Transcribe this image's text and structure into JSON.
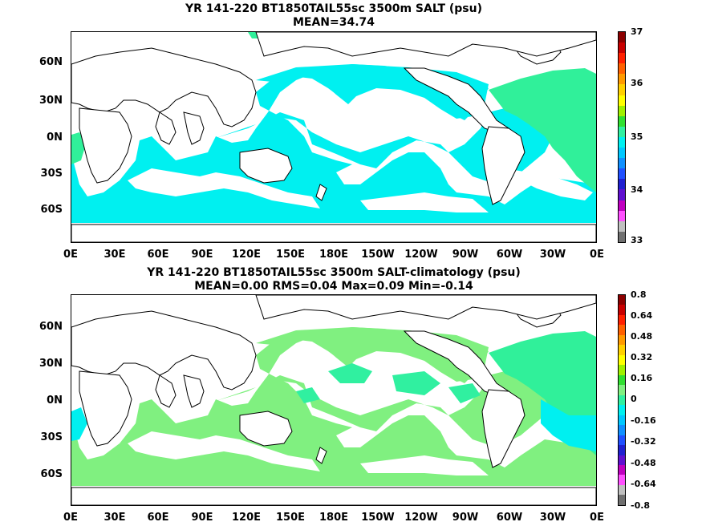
{
  "top": {
    "title_line1": "YR 141-220 BT1850TAIL55sc 3500m SALT (psu)",
    "title_line2": "MEAN=34.74",
    "field_color": "#00f0f0",
    "atlantic_color": "#30f09a",
    "colorbar_labels": [
      "37",
      "36",
      "35",
      "34",
      "33"
    ],
    "colorbar_colors": [
      "#8b0000",
      "#c80000",
      "#ff2000",
      "#ff6000",
      "#ff9a00",
      "#ffd000",
      "#ffff00",
      "#a0f000",
      "#30e030",
      "#30f0a0",
      "#00f0f0",
      "#00c8ff",
      "#1090ff",
      "#2050ff",
      "#2020d0",
      "#6010d0",
      "#c000c0",
      "#ff50ff",
      "#c0c0c0",
      "#707070"
    ]
  },
  "bottom": {
    "title_line1": "YR 141-220 BT1850TAIL55sc 3500m SALT-climatology (psu)",
    "title_line2": "MEAN=0.00   RMS=0.04   Max=0.09   Min=-0.14",
    "field_color": "#80f080",
    "atlantic_color": "#30f09a",
    "negative_color": "#00f0f0",
    "colorbar_labels": [
      "0.8",
      "0.64",
      "0.48",
      "0.32",
      "0.16",
      "0",
      "-0.16",
      "-0.32",
      "-0.48",
      "-0.64",
      "-0.8"
    ],
    "colorbar_colors": [
      "#8b0000",
      "#c80000",
      "#ff2000",
      "#ff6000",
      "#ff9a00",
      "#ffd000",
      "#ffff00",
      "#a0f000",
      "#30e030",
      "#80f080",
      "#30f0a0",
      "#00f0f0",
      "#00c8ff",
      "#1090ff",
      "#2050ff",
      "#2020d0",
      "#6010d0",
      "#c000c0",
      "#ff50ff",
      "#c0c0c0",
      "#707070"
    ]
  },
  "lat_labels": [
    "60N",
    "30N",
    "0N",
    "30S",
    "60S"
  ],
  "lon_labels": [
    "0E",
    "30E",
    "60E",
    "90E",
    "120E",
    "150E",
    "180E",
    "150W",
    "120W",
    "90W",
    "60W",
    "30W",
    "0E"
  ]
}
